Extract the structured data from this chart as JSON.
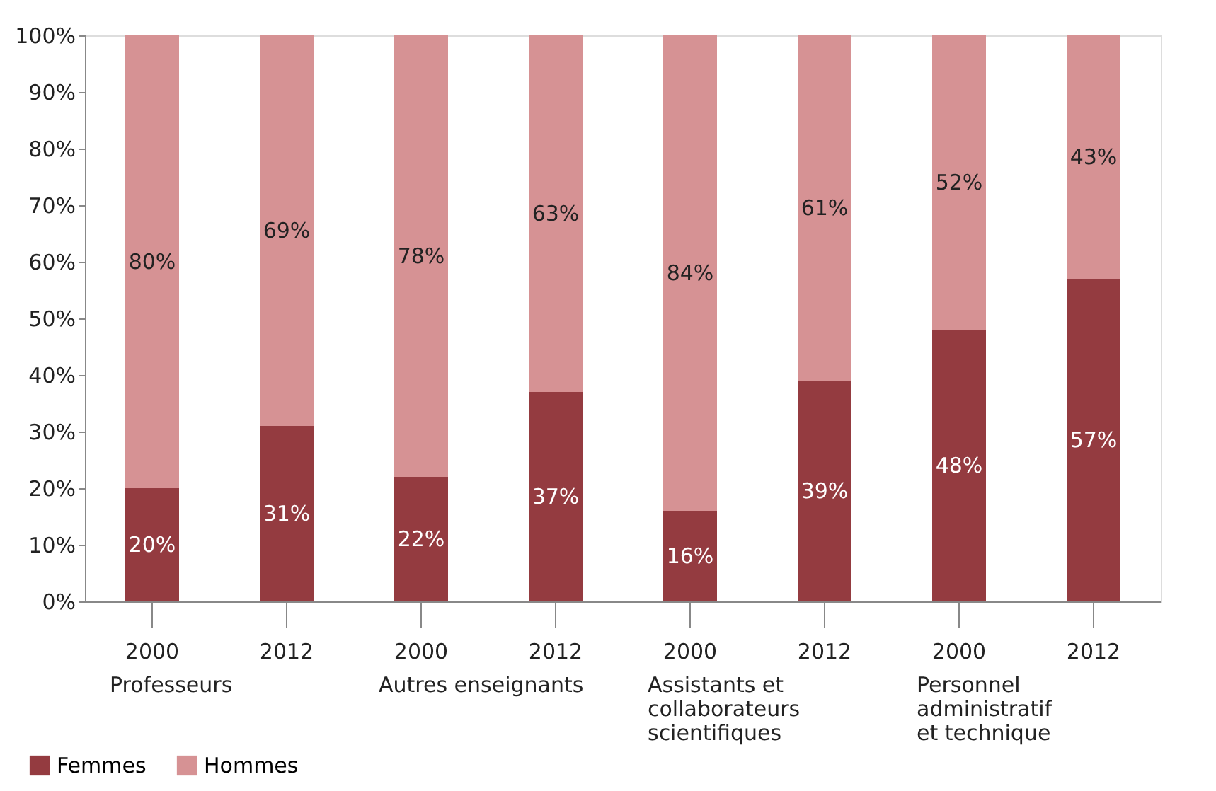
{
  "chart_data": {
    "type": "bar",
    "stacked": true,
    "categories": [
      "2000",
      "2012",
      "2000",
      "2012",
      "2000",
      "2012",
      "2000",
      "2012"
    ],
    "series": [
      {
        "name": "Femmes",
        "color": "#943b40",
        "values": [
          20,
          31,
          22,
          37,
          16,
          39,
          48,
          57
        ],
        "value_labels": [
          "20%",
          "31%",
          "22%",
          "37%",
          "16%",
          "39%",
          "48%",
          "57%"
        ]
      },
      {
        "name": "Hommes",
        "color": "#d69294",
        "values": [
          80,
          69,
          78,
          63,
          84,
          61,
          52,
          43
        ],
        "value_labels": [
          "80%",
          "69%",
          "78%",
          "63%",
          "84%",
          "61%",
          "52%",
          "43%"
        ]
      }
    ],
    "ylim": [
      0,
      100
    ],
    "yticks": [
      {
        "value": 0,
        "label": "0%"
      },
      {
        "value": 10,
        "label": "10%"
      },
      {
        "value": 20,
        "label": "20%"
      },
      {
        "value": 30,
        "label": "30%"
      },
      {
        "value": 40,
        "label": "40%"
      },
      {
        "value": 50,
        "label": "50%"
      },
      {
        "value": 60,
        "label": "60%"
      },
      {
        "value": 70,
        "label": "70%"
      },
      {
        "value": 80,
        "label": "80%"
      },
      {
        "value": 90,
        "label": "90%"
      },
      {
        "value": 100,
        "label": "100%"
      }
    ],
    "annotations": [
      "Professeurs",
      "Autres enseignants",
      "Assistants et\ncollaborateurs\nscientifiques",
      "Personnel\nadministratif\net technique"
    ],
    "grid": false,
    "legend": "bottom left"
  }
}
